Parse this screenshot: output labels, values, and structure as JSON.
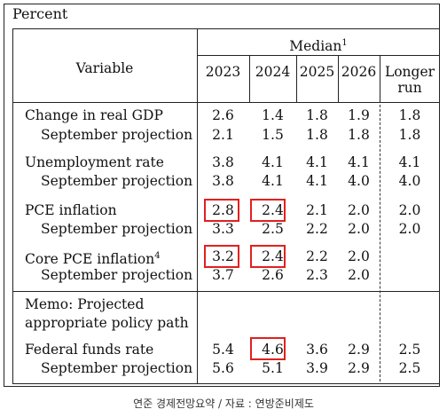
{
  "header": {
    "percent": "Percent",
    "median": "Median",
    "median_note": "1",
    "variable": "Variable",
    "years": [
      "2023",
      "2024",
      "2025",
      "2026"
    ],
    "longer_run_1": "Longer",
    "longer_run_2": "run"
  },
  "rows": [
    {
      "label": "Change in real GDP",
      "values": [
        "2.6",
        "1.4",
        "1.8",
        "1.9",
        "1.8"
      ]
    },
    {
      "label": "September projection",
      "values": [
        "2.1",
        "1.5",
        "1.8",
        "1.8",
        "1.8"
      ]
    },
    {
      "label": "Unemployment rate",
      "values": [
        "3.8",
        "4.1",
        "4.1",
        "4.1",
        "4.1"
      ]
    },
    {
      "label": "September projection",
      "values": [
        "3.8",
        "4.1",
        "4.1",
        "4.0",
        "4.0"
      ]
    },
    {
      "label": "PCE inflation",
      "values": [
        "2.8",
        "2.4",
        "2.1",
        "2.0",
        "2.0"
      ]
    },
    {
      "label": "September projection",
      "values": [
        "3.3",
        "2.5",
        "2.2",
        "2.0",
        "2.0"
      ]
    },
    {
      "label": "Core PCE inflation",
      "note": "4",
      "values": [
        "3.2",
        "2.4",
        "2.2",
        "2.0",
        ""
      ]
    },
    {
      "label": "September projection",
      "values": [
        "3.7",
        "2.6",
        "2.3",
        "2.0",
        ""
      ]
    }
  ],
  "memo": {
    "line1": "Memo: Projected",
    "line2": "appropriate policy path"
  },
  "memo_rows": [
    {
      "label": "Federal funds rate",
      "values": [
        "5.4",
        "4.6",
        "3.6",
        "2.9",
        "2.5"
      ]
    },
    {
      "label": "September projection",
      "values": [
        "5.6",
        "5.1",
        "3.9",
        "2.9",
        "2.5"
      ]
    }
  ],
  "caption": "연준 경제전망요약 / 자료 : 연방준비제도",
  "highlight_color": "#e02020"
}
